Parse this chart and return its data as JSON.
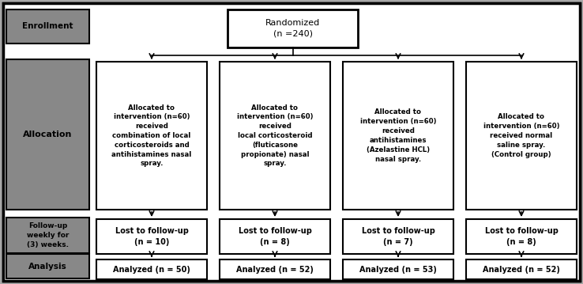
{
  "bg_color": "#a8a8a8",
  "box_bg_white": "#ffffff",
  "box_bg_gray": "#888888",
  "box_border": "#000000",
  "text_color": "#000000",
  "enrollment_label": "Enrollment",
  "allocation_label": "Allocation",
  "followup_label": "Follow-up\nweekly for\n(3) weeks.",
  "analysis_label": "Analysis",
  "randomized_text": "Randomized\n(n =240)",
  "alloc_boxes": [
    "Allocated to\nintervention (n=60)\nreceived\ncombination of local\ncorticosteroids and\nantihistamines nasal\nspray.",
    "Allocated to\nintervention (n=60)\nreceived\nlocal corticosteroid\n(fluticasone\npropionate) nasal\nspray.",
    "Allocated to\nintervention (n=60)\nreceived\nantihistamines\n(Azelastine HCL)\nnasal spray.",
    "Allocated to\nintervention (n=60)\nreceived normal\nsaline spray.\n(Control group)"
  ],
  "lost_boxes": [
    "Lost to follow-up\n(n = 10)",
    "Lost to follow-up\n(n = 8)",
    "Lost to follow-up\n(n = 7)",
    "Lost to follow-up\n(n = 8)"
  ],
  "analysis_boxes": [
    "Analyzed (n = 50)",
    "Analyzed (n = 52)",
    "Analyzed (n = 53)",
    "Analyzed (n = 52)"
  ]
}
